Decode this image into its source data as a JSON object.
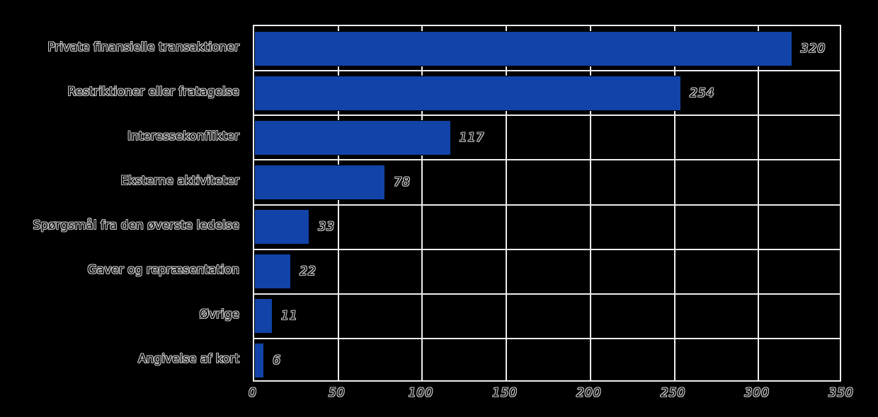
{
  "chart_data": {
    "type": "bar",
    "orientation": "horizontal",
    "title": "",
    "xlabel": "",
    "ylabel": "",
    "categories": [
      "Private finansielle transaktioner",
      "Restriktioner eller fratagelse",
      "Interessekonflikter",
      "Eksterne aktiviteter",
      "Spørgsmål fra den øverste ledelse",
      "Gaver og repræsentation",
      "Øvrige",
      "Angivelse af kort"
    ],
    "values": [
      320,
      254,
      117,
      78,
      33,
      22,
      11,
      6
    ],
    "value_labels": [
      "320",
      "254",
      "117",
      "78",
      "33",
      "22",
      "11",
      "6"
    ],
    "xlim": [
      0,
      350
    ],
    "x_ticks": [
      0,
      50,
      100,
      150,
      200,
      250,
      300,
      350
    ],
    "grid": true,
    "legend": "none",
    "bar_color": "#1143a8",
    "background_color": "#000000",
    "grid_color": "#ededed",
    "text_outline_color": "#c6c6c6"
  }
}
